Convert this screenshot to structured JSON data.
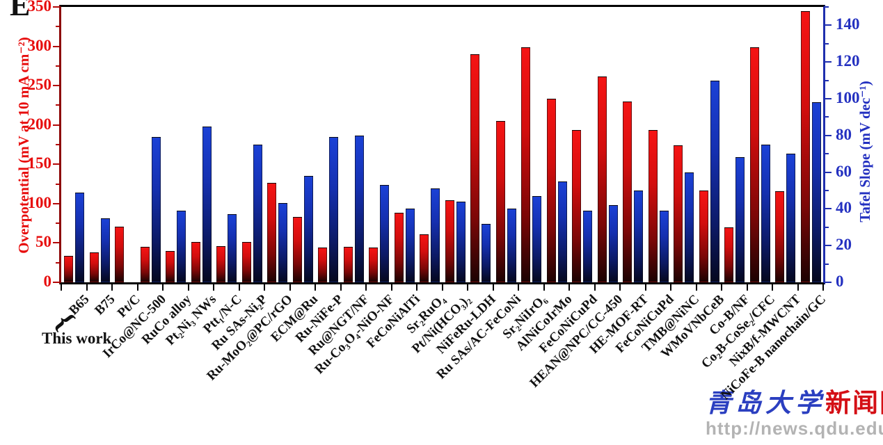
{
  "panel_label": "E",
  "annotation": {
    "brace": "{",
    "label": "This work"
  },
  "watermark": {
    "cn_blue": "青岛大学",
    "cn_red": "新闻网",
    "url": "http://news.qdu.edu.cn"
  },
  "chart_data": {
    "type": "bar",
    "title": "",
    "grid": false,
    "legend": "none",
    "y_left": {
      "label": "Overpotential (mV at 10 mA cm⁻²)",
      "min": 0,
      "max": 350,
      "major_step": 50,
      "minor_step": 25,
      "ticks": [
        0,
        50,
        100,
        150,
        200,
        250,
        300,
        350
      ],
      "color": "#e70d0d"
    },
    "y_right": {
      "label": "Tafel Slope (mV dec⁻¹)",
      "min": 0,
      "max": 150,
      "major_step": 20,
      "minor_step": 10,
      "ticks": [
        0,
        20,
        40,
        60,
        80,
        100,
        120,
        140
      ],
      "color": "#2330c0"
    },
    "categories": [
      "B65",
      "B75",
      "Pt/C",
      "IrCo@NC-500",
      "RuCo alloy",
      "Pt₂Ni₃ NWs",
      "Ptt₁/N-C",
      "Ru SAs-Ni₂P",
      "Ru-MoO₂@PC/rGO",
      "ECM@Ru",
      "Ru-NiFe-P",
      "Ru@NGT/NF",
      "Ru-Co₃O₄-NiO-NF",
      "FeCoNiAlTi",
      "Sr₂RuO₄",
      "Pt/Ni(HCO₃)₂",
      "NiFeRu-LDH",
      "Ru SAs/AC-FeCoNi",
      "Sr₂NiIrO₆",
      "AlNiCoIrMo",
      "FeCoNiCuPd",
      "HEAN@NPC/CC-450",
      "HE-MOF-RT",
      "FeCoNiCuPd",
      "TMB@NiNC",
      "WMoVNbCeB",
      "Co-B/NF",
      "Co₂B-CoSe₂/CFC",
      "NixB/f-MWCNT",
      "NiCoFe-B nanochain/GC"
    ],
    "series": [
      {
        "name": "Overpotential (mV at 10 mA cm⁻²)",
        "axis": "left",
        "color_top": "#f51414",
        "color_bottom": "#1c0202",
        "values": [
          34,
          38,
          71,
          45,
          40,
          51,
          46,
          51,
          126,
          83,
          44,
          45,
          44,
          88,
          61,
          104,
          290,
          205,
          299,
          233,
          194,
          262,
          230,
          194,
          174,
          117,
          70,
          299,
          116,
          345
        ]
      },
      {
        "name": "Tafel Slope (mV dec⁻¹)",
        "axis": "right",
        "color_top": "#1b41d6",
        "color_bottom": "#05081f",
        "values": [
          49,
          35,
          null,
          79,
          39,
          85,
          37,
          75,
          43,
          58,
          79,
          80,
          53,
          40,
          51,
          44,
          32,
          40,
          47,
          55,
          39,
          42,
          50,
          39,
          60,
          110,
          68,
          75,
          70,
          98
        ]
      }
    ],
    "this_work_categories": [
      "B65",
      "B75"
    ]
  }
}
